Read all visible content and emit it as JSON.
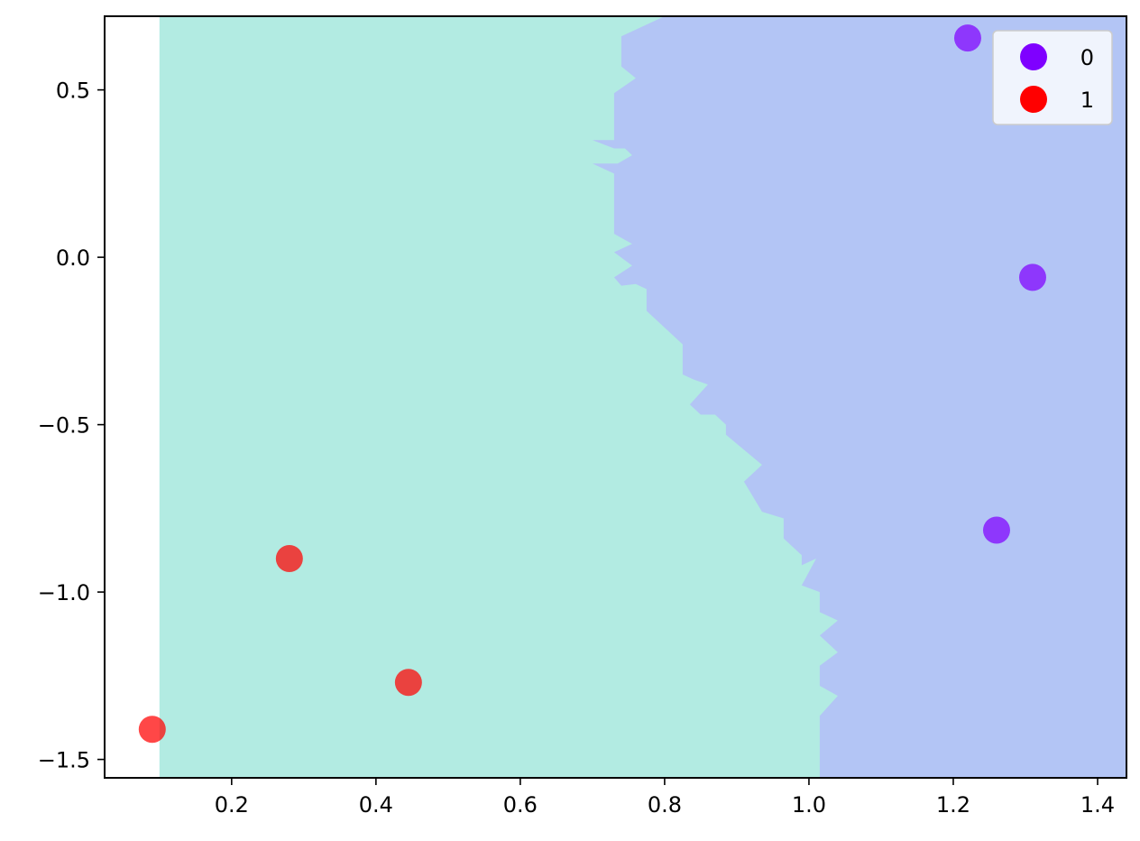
{
  "chart_data": {
    "type": "scatter",
    "title": "",
    "xlabel": "",
    "ylabel": "",
    "xlim": [
      0.024,
      1.44
    ],
    "ylim": [
      -1.555,
      0.72
    ],
    "xticks": [
      {
        "value": 0.2,
        "label": "0.2"
      },
      {
        "value": 0.4,
        "label": "0.4"
      },
      {
        "value": 0.6,
        "label": "0.6"
      },
      {
        "value": 0.8,
        "label": "0.8"
      },
      {
        "value": 1.0,
        "label": "1.0"
      },
      {
        "value": 1.2,
        "label": "1.2"
      },
      {
        "value": 1.4,
        "label": "1.4"
      }
    ],
    "yticks": [
      {
        "value": 0.5,
        "label": "0.5"
      },
      {
        "value": 0.0,
        "label": "0.0"
      },
      {
        "value": -0.5,
        "label": "−0.5"
      },
      {
        "value": -1.0,
        "label": "−1.0"
      },
      {
        "value": -1.5,
        "label": "−1.5"
      }
    ],
    "grid": false,
    "legend_position": "top-right",
    "series": [
      {
        "name": "0",
        "color": "#7f00ff",
        "points": [
          [
            1.22,
            0.655
          ],
          [
            1.31,
            -0.06
          ],
          [
            1.26,
            -0.815
          ]
        ]
      },
      {
        "name": "1",
        "color": "#ff0000",
        "points": [
          [
            0.28,
            -0.9
          ],
          [
            0.445,
            -1.27
          ],
          [
            0.09,
            -1.41
          ]
        ]
      }
    ],
    "decision_regions": {
      "background_color": "#ffffff",
      "left_region_color": "#b2ebe2",
      "right_region_color": "#b3c5f5",
      "domain_x_min": 0.1,
      "boundary": [
        [
          0.8,
          0.72
        ],
        [
          0.74,
          0.66
        ],
        [
          0.74,
          0.57
        ],
        [
          0.76,
          0.535
        ],
        [
          0.73,
          0.49
        ],
        [
          0.73,
          0.35
        ],
        [
          0.7,
          0.35
        ],
        [
          0.73,
          0.325
        ],
        [
          0.745,
          0.325
        ],
        [
          0.755,
          0.305
        ],
        [
          0.735,
          0.28
        ],
        [
          0.7,
          0.28
        ],
        [
          0.73,
          0.25
        ],
        [
          0.73,
          0.07
        ],
        [
          0.755,
          0.04
        ],
        [
          0.73,
          0.015
        ],
        [
          0.755,
          -0.025
        ],
        [
          0.73,
          -0.06
        ],
        [
          0.74,
          -0.085
        ],
        [
          0.76,
          -0.08
        ],
        [
          0.775,
          -0.095
        ],
        [
          0.775,
          -0.16
        ],
        [
          0.825,
          -0.26
        ],
        [
          0.825,
          -0.35
        ],
        [
          0.84,
          -0.365
        ],
        [
          0.86,
          -0.38
        ],
        [
          0.835,
          -0.44
        ],
        [
          0.85,
          -0.47
        ],
        [
          0.87,
          -0.47
        ],
        [
          0.885,
          -0.5
        ],
        [
          0.885,
          -0.53
        ],
        [
          0.935,
          -0.62
        ],
        [
          0.91,
          -0.67
        ],
        [
          0.935,
          -0.76
        ],
        [
          0.965,
          -0.78
        ],
        [
          0.965,
          -0.84
        ],
        [
          0.99,
          -0.89
        ],
        [
          0.99,
          -0.92
        ],
        [
          1.01,
          -0.9
        ],
        [
          0.99,
          -0.98
        ],
        [
          1.015,
          -1.0
        ],
        [
          1.015,
          -1.06
        ],
        [
          1.04,
          -1.085
        ],
        [
          1.015,
          -1.13
        ],
        [
          1.04,
          -1.18
        ],
        [
          1.015,
          -1.22
        ],
        [
          1.015,
          -1.28
        ],
        [
          1.04,
          -1.31
        ],
        [
          1.015,
          -1.37
        ],
        [
          1.015,
          -1.555
        ]
      ]
    }
  }
}
